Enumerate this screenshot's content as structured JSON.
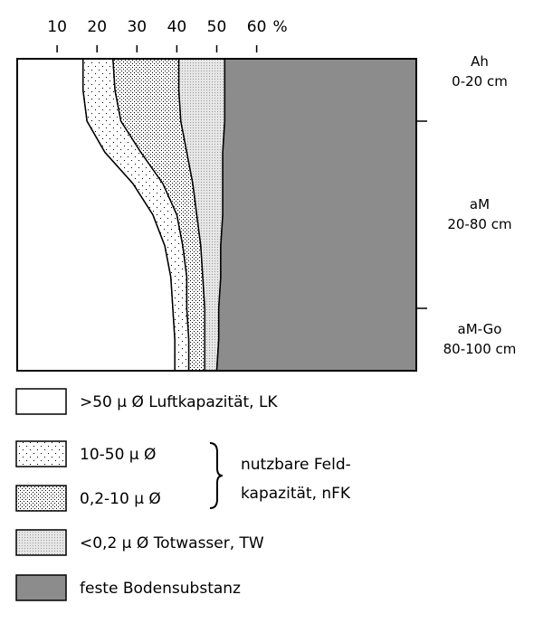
{
  "chart_data": {
    "type": "stacked-area-horizontal",
    "x_unit": "%",
    "xlim": [
      0,
      100
    ],
    "xticks": [
      10,
      20,
      30,
      40,
      50,
      60
    ],
    "ylim": [
      0,
      100
    ],
    "yticks": [
      20,
      80
    ],
    "depths": [
      0,
      10,
      20,
      30,
      40,
      50,
      60,
      70,
      80,
      90,
      100
    ],
    "series": [
      {
        "name": ">50 μ Ø Luftkapazität, LK",
        "color": "#ffffff",
        "pattern": "none",
        "values": [
          16.5,
          16.5,
          17.5,
          22,
          29,
          34,
          37,
          38.5,
          39,
          39.5,
          39.5
        ]
      },
      {
        "name": "10-50 μ Ø",
        "color": "#ffffff",
        "pattern": "sparse-dots",
        "values": [
          7.5,
          8,
          8.5,
          9,
          7.5,
          6,
          4.5,
          4,
          3.5,
          3.5,
          3.5
        ]
      },
      {
        "name": "0,2-10 μ Ø",
        "color": "#ffffff",
        "pattern": "dense-dots",
        "values": [
          16.5,
          16,
          15,
          11.5,
          7.5,
          5,
          4.5,
          4,
          4.5,
          4,
          4
        ]
      },
      {
        "name": "<0,2 μ Ø Totwasser, TW",
        "color": "#e6e6e6",
        "pattern": "fine-stipple",
        "values": [
          11.5,
          11.5,
          11,
          9,
          7.5,
          6.5,
          5,
          4.5,
          3.5,
          3.5,
          3
        ]
      },
      {
        "name": "feste Bodensubstanz",
        "color": "#8c8c8c",
        "pattern": "none",
        "values": [
          48,
          48,
          48,
          48.5,
          48.5,
          48.5,
          49,
          49,
          49.5,
          49.5,
          50
        ]
      }
    ],
    "horizons": [
      {
        "name": "Ah",
        "depth": "0-20 cm"
      },
      {
        "name": "aM",
        "depth": "20-80 cm"
      },
      {
        "name": "aM-Go",
        "depth": "80-100 cm"
      }
    ],
    "annotation": [
      "nutzbare Feld-",
      "kapazität, nFK"
    ]
  }
}
